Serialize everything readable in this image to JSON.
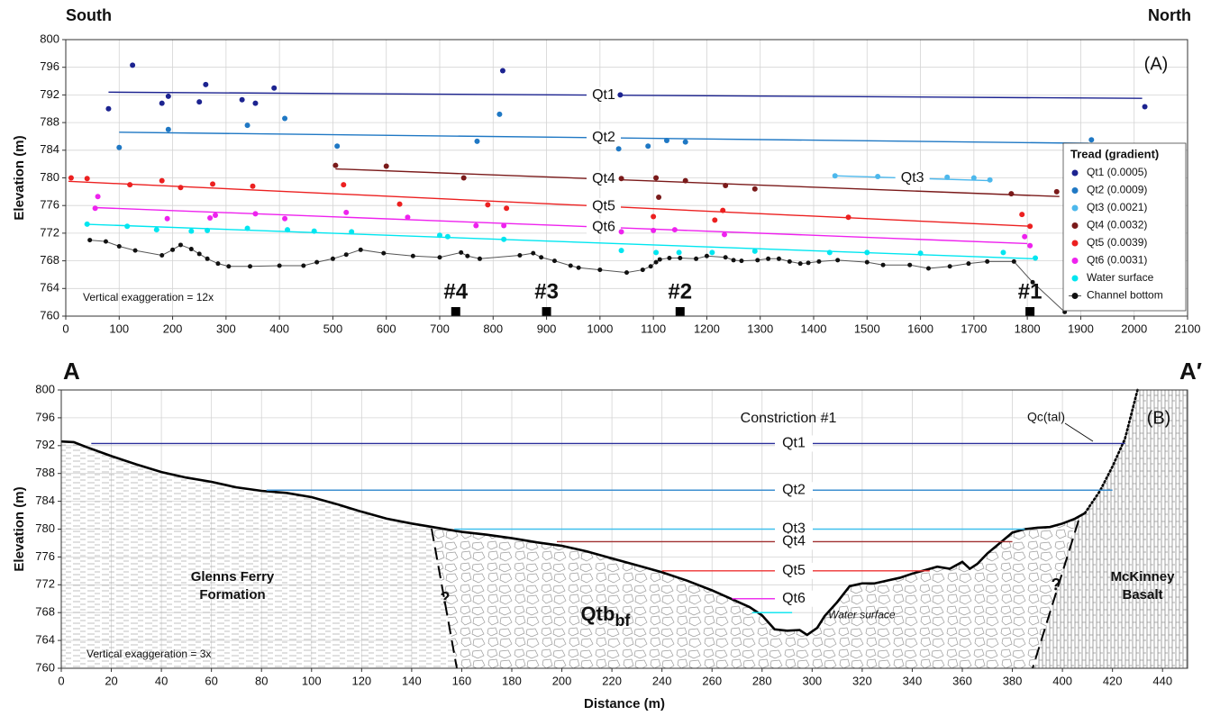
{
  "chart_data": [
    {
      "type": "scatter",
      "corner_labels": {
        "left": "South",
        "right": "North"
      },
      "panel_label": "(A)",
      "note": "Vertical exaggeration = 12x",
      "ylabel": "Elevation (m)",
      "xlim": [
        0,
        2100
      ],
      "ylim": [
        760,
        800
      ],
      "xticks": [
        0,
        100,
        200,
        300,
        400,
        500,
        600,
        700,
        800,
        900,
        1000,
        1100,
        1200,
        1300,
        1400,
        1500,
        1600,
        1700,
        1800,
        1900,
        2000,
        2100
      ],
      "yticks": [
        760,
        764,
        768,
        772,
        776,
        780,
        784,
        788,
        792,
        796,
        800
      ],
      "grid": true,
      "legend": {
        "title": "Tread (gradient)",
        "position": "lower right"
      },
      "series": [
        {
          "name": "Qt1 (0.0005)",
          "label": "Qt1",
          "color": "#1c2390",
          "x": [
            80,
            125,
            180,
            192,
            250,
            262,
            330,
            355,
            390,
            818,
            1038,
            2020
          ],
          "values": [
            790,
            796.3,
            790.8,
            791.8,
            791,
            793.5,
            791.3,
            790.8,
            793,
            795.5,
            792,
            790.3
          ],
          "fit": {
            "x": [
              80,
              2015
            ],
            "values": [
              792.4,
              791.5
            ]
          }
        },
        {
          "name": "Qt2 (0.0009)",
          "label": "Qt2",
          "color": "#1f78c4",
          "x": [
            100,
            192,
            340,
            410,
            508,
            770,
            812,
            1035,
            1090,
            1125,
            1160,
            1920
          ],
          "values": [
            784.4,
            787,
            787.6,
            788.6,
            784.6,
            785.3,
            789.2,
            784.2,
            784.6,
            785.4,
            785.2,
            785.5
          ],
          "fit": {
            "x": [
              100,
              1915
            ],
            "values": [
              786.6,
              785
            ]
          }
        },
        {
          "name": "Qt3 (0.0021)",
          "label": "Qt3",
          "color": "#4db8ec",
          "x": [
            1440,
            1520,
            1650,
            1700,
            1730
          ],
          "values": [
            780.3,
            780.2,
            780.1,
            780,
            779.7
          ],
          "fit": {
            "x": [
              1440,
              1730
            ],
            "values": [
              780.3,
              779.6
            ]
          }
        },
        {
          "name": "Qt4 (0.0032)",
          "label": "Qt4",
          "color": "#7a1a1a",
          "x": [
            505,
            600,
            745,
            1040,
            1105,
            1110,
            1160,
            1235,
            1290,
            1770,
            1855
          ],
          "values": [
            781.8,
            781.7,
            780,
            779.9,
            780,
            777.2,
            779.6,
            778.9,
            778.4,
            777.7,
            778
          ],
          "fit": {
            "x": [
              505,
              1860
            ],
            "values": [
              781.3,
              777.3
            ]
          }
        },
        {
          "name": "Qt5 (0.0039)",
          "label": "Qt5",
          "color": "#ec2020",
          "x": [
            10,
            40,
            120,
            180,
            215,
            275,
            350,
            520,
            625,
            790,
            825,
            1100,
            1215,
            1230,
            1465,
            1790,
            1805
          ],
          "values": [
            780,
            779.9,
            779,
            779.6,
            778.6,
            779.1,
            778.8,
            779,
            776.2,
            776.1,
            775.6,
            774.4,
            773.9,
            775.3,
            774.3,
            774.7,
            773
          ],
          "fit": {
            "x": [
              5,
              1805
            ],
            "values": [
              779.5,
              773
            ]
          }
        },
        {
          "name": "Qt6 (0.0031)",
          "label": "Qt6",
          "color": "#ee22ee",
          "x": [
            55,
            60,
            190,
            270,
            280,
            355,
            410,
            525,
            640,
            768,
            820,
            1040,
            1100,
            1140,
            1233,
            1795,
            1805
          ],
          "values": [
            775.6,
            777.3,
            774.1,
            774.2,
            774.6,
            774.8,
            774.1,
            775,
            774.3,
            773.1,
            773.1,
            772.2,
            772.4,
            772.5,
            771.8,
            771.5,
            770.2
          ],
          "fit": {
            "x": [
              55,
              1800
            ],
            "values": [
              775.7,
              770.5
            ]
          }
        },
        {
          "name": "Water surface",
          "color": "#00e6f0",
          "x": [
            40,
            115,
            170,
            235,
            265,
            340,
            415,
            465,
            535,
            700,
            715,
            820,
            1040,
            1105,
            1148,
            1210,
            1290,
            1430,
            1500,
            1600,
            1755,
            1815
          ],
          "values": [
            773.3,
            773,
            772.5,
            772.3,
            772.4,
            772.7,
            772.5,
            772.3,
            772.2,
            771.7,
            771.5,
            771.1,
            769.5,
            769.2,
            769.2,
            769.2,
            769.4,
            769.2,
            769.2,
            769.1,
            769.2,
            768.4
          ],
          "fit": {
            "x": [
              35,
              1810
            ],
            "values": [
              773.3,
              768.3
            ]
          }
        },
        {
          "name": "Channel bottom",
          "color": "#111111",
          "line": true,
          "x": [
            45,
            75,
            100,
            130,
            180,
            200,
            215,
            235,
            250,
            265,
            285,
            305,
            345,
            400,
            445,
            470,
            500,
            525,
            552,
            595,
            650,
            700,
            740,
            752,
            775,
            850,
            875,
            890,
            915,
            945,
            960,
            1000,
            1050,
            1080,
            1095,
            1105,
            1112,
            1130,
            1150,
            1180,
            1200,
            1235,
            1250,
            1265,
            1295,
            1315,
            1335,
            1355,
            1375,
            1390,
            1410,
            1445,
            1500,
            1530,
            1580,
            1615,
            1655,
            1690,
            1725,
            1775,
            1810,
            1870
          ],
          "values": [
            771,
            770.8,
            770.1,
            769.5,
            768.8,
            769.6,
            770.3,
            769.7,
            769,
            768.3,
            767.6,
            767.2,
            767.2,
            767.3,
            767.3,
            767.8,
            768.3,
            768.9,
            769.6,
            769.1,
            768.7,
            768.5,
            769.2,
            768.7,
            768.3,
            768.8,
            769.1,
            768.5,
            768,
            767.3,
            767,
            766.7,
            766.3,
            766.7,
            767.2,
            767.8,
            768.2,
            768.4,
            768.4,
            768.3,
            768.7,
            768.5,
            768.1,
            768,
            768.1,
            768.3,
            768.3,
            767.9,
            767.6,
            767.7,
            767.9,
            768.1,
            767.8,
            767.4,
            767.4,
            766.9,
            767.2,
            767.6,
            767.9,
            767.9,
            764.9,
            760.6
          ]
        }
      ],
      "constrictions": {
        "labels": [
          "#4",
          "#3",
          "#2",
          "#1"
        ],
        "x": [
          730,
          900,
          1150,
          1805
        ]
      }
    },
    {
      "type": "line",
      "corner_labels": {
        "left": "A",
        "right": "A′"
      },
      "panel_label": "(B)",
      "title": "Constriction #1",
      "note": "Vertical exaggeration = 3x",
      "xlabel": "Distance (m)",
      "ylabel": "Elevation (m)",
      "xlim": [
        0,
        450
      ],
      "ylim": [
        760,
        800
      ],
      "xticks": [
        0,
        20,
        40,
        60,
        80,
        100,
        120,
        140,
        160,
        180,
        200,
        220,
        240,
        260,
        280,
        300,
        320,
        340,
        360,
        380,
        400,
        420,
        440
      ],
      "yticks": [
        760,
        764,
        768,
        772,
        776,
        780,
        784,
        788,
        792,
        796,
        800
      ],
      "grid": true,
      "levels": [
        {
          "name": "Qt1",
          "color": "#2a2f9a",
          "x": [
            12,
            425
          ],
          "values": [
            792.3,
            792.3
          ]
        },
        {
          "name": "Qt2",
          "color": "#3d8fd0",
          "x": [
            82,
            420
          ],
          "values": [
            785.6,
            785.6
          ]
        },
        {
          "name": "Qt3",
          "color": "#40c0ee",
          "x": [
            157,
            385
          ],
          "values": [
            780,
            780
          ]
        },
        {
          "name": "Qt4",
          "color": "#a03030",
          "x": [
            198,
            380
          ],
          "values": [
            778.2,
            778.2
          ]
        },
        {
          "name": "Qt5",
          "color": "#ee3333",
          "x": [
            240,
            347
          ],
          "values": [
            774,
            774
          ]
        },
        {
          "name": "Qt6",
          "color": "#ee33ee",
          "x": [
            268,
            295
          ],
          "values": [
            770,
            770
          ]
        },
        {
          "name": "Water surface",
          "color": "#00e5f0",
          "x": [
            276,
            292
          ],
          "values": [
            768,
            768
          ]
        }
      ],
      "profile": {
        "x": [
          0,
          5,
          10,
          20,
          30,
          40,
          50,
          60,
          70,
          80,
          90,
          100,
          110,
          120,
          130,
          140,
          150,
          160,
          170,
          180,
          190,
          200,
          210,
          220,
          230,
          240,
          250,
          260,
          270,
          275,
          280,
          285,
          290,
          295,
          298,
          302,
          305,
          310,
          315,
          320,
          325,
          330,
          335,
          340,
          345,
          350,
          355,
          360,
          363,
          366,
          370,
          375,
          380,
          385,
          390,
          395,
          400,
          405,
          409
        ],
        "values": [
          792.6,
          792.5,
          791.8,
          790.5,
          789.3,
          788.2,
          787.4,
          786.8,
          786,
          785.5,
          785.2,
          784.6,
          783.6,
          782.5,
          781.5,
          780.8,
          780.2,
          779.6,
          779.2,
          778.7,
          778.1,
          777.6,
          776.8,
          775.8,
          774.8,
          773.8,
          772.6,
          771.2,
          769.6,
          768.8,
          767.6,
          765.6,
          765.4,
          765.5,
          764.8,
          765.8,
          767.5,
          769.5,
          771.8,
          772.2,
          772.2,
          772.6,
          773,
          773.6,
          774.1,
          774.6,
          774.3,
          775.3,
          774.3,
          775,
          776.5,
          778,
          779.5,
          780,
          780.2,
          780.3,
          780.8,
          781.5,
          782.3
        ]
      },
      "talus": {
        "name": "Qc(tal)",
        "x": [
          409,
          415,
          420,
          425,
          430
        ],
        "values": [
          782.3,
          785.5,
          789,
          793,
          800
        ]
      },
      "units": {
        "left": [
          "Glenns Ferry",
          "Formation"
        ],
        "middle": {
          "main": "Qtb",
          "sub": "bf"
        },
        "right": [
          "McKinney",
          "Basalt"
        ]
      },
      "uncertain": [
        "?",
        "?"
      ]
    }
  ]
}
